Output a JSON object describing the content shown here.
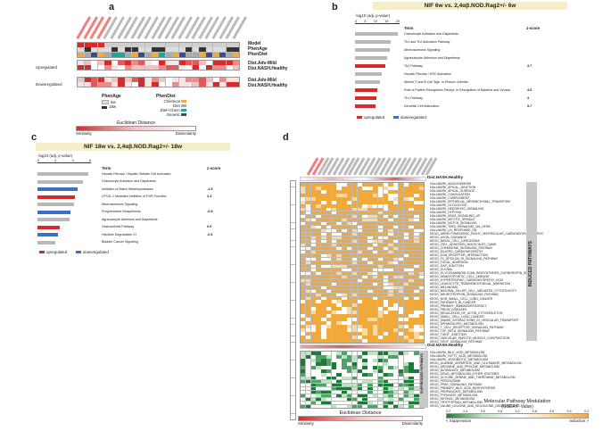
{
  "panels": {
    "a": "a",
    "b": "b",
    "c": "c",
    "d": "d"
  },
  "panel_a": {
    "row_labels": [
      "Model",
      "PhenAge",
      "PhenDiet",
      "Dist.Adv-Mild",
      "Dist.NASH.Healthy"
    ],
    "side_labels": [
      "Upregulated",
      "Downregulated"
    ],
    "phenage_title": "PhenAge",
    "phenage_items": [
      "6w",
      "18w"
    ],
    "phendiet_title": "PhenDiet",
    "phendiet_items": [
      "Chemical",
      "Diet",
      "Diet+Chem",
      "Genetic"
    ],
    "scale_title": "Euclidean Distance",
    "scale_low": "Similarity",
    "scale_high": "Dissimilarity"
  },
  "panel_b": {
    "title": "NIF 6w vs. 2,4αβ.NOD.Rag2+/- 6w",
    "axis_label": "-log10 (adj. p-value)",
    "ticks": [
      "0",
      "5",
      "10",
      "15",
      "20"
    ],
    "term_header": "Term",
    "z_header": "z-score",
    "terms": [
      {
        "term": "Granulocyte Adhesion and Diapedesis",
        "z": ""
      },
      {
        "term": "Th1 and Th2 Activation Pathway",
        "z": ""
      },
      {
        "term": "Atherosclerosis Signaling",
        "z": ""
      },
      {
        "term": "Agranulocyte Adhesion and Diapedesis",
        "z": ""
      },
      {
        "term": "Th2 Pathway",
        "z": "3.7"
      },
      {
        "term": "Hepatic Fibrosis / HSC Activation",
        "z": ""
      },
      {
        "term": "Altered T and B Cell Sign. in Rheum. Arthritis",
        "z": ""
      },
      {
        "term": "Role of Pattern Recognition Recept. in Recognition of Bacteria and Viruses",
        "z": "4.5"
      },
      {
        "term": "Th1 Pathway",
        "z": "4"
      },
      {
        "term": "Dendritic Cell Maturation",
        "z": "5.7"
      }
    ],
    "legend_up": "upregulated",
    "legend_down": "downregulated"
  },
  "panel_c": {
    "title": "NIF 18w vs. 2,4αβ.NOD.Rag2+/- 18w",
    "axis_label": "-log10 (adj. p-value)",
    "ticks": [
      "0",
      "2",
      "4",
      "6"
    ],
    "term_header": "Term",
    "z_header": "z-score",
    "terms": [
      {
        "term": "Hepatic Fibrosis / Hepatic Stellate Cell Activation",
        "z": ""
      },
      {
        "term": "Granulocyte Adhesion and Diapedesis",
        "z": ""
      },
      {
        "term": "Inhibition of Matrix Metalloproteases",
        "z": "-1.5"
      },
      {
        "term": "LPS/IL-1 Mediated Inhibition of RXR Function",
        "z": "2.3"
      },
      {
        "term": "Atherosclerosis Signaling",
        "z": ""
      },
      {
        "term": "Pregnenolone Biosynthesis",
        "z": "-0.8"
      },
      {
        "term": "Agranulocyte Adhesion and Diapedesis",
        "z": ""
      },
      {
        "term": "Osteoarthritis Pathway",
        "z": "0.5"
      },
      {
        "term": "Histidine Degradation VI",
        "z": "-0.6"
      },
      {
        "term": "Bladder Cancer Signaling",
        "z": ""
      }
    ],
    "legend_up": "upregulated",
    "legend_down": "downregulated"
  },
  "panel_d": {
    "top_label": "Dist.NASH.Healthy",
    "mid_label": "Dist.NASH.Healthy",
    "induced_label": "INDUCED PATHWAYS",
    "suppressed_label": "SUPPRESSED PATHWAYS",
    "induced_pathways": [
      "HALLMARK_ANGIOGENESIS",
      "HALLMARK_APICAL_JUNCTION",
      "HALLMARK_APICAL_SURFACE",
      "HALLMARK_COAGULATION",
      "HALLMARK_COMPLEMENT",
      "HALLMARK_EPITHELIAL_MESENCHYMAL_TRANSITION",
      "HALLMARK_GLYCOLYSIS",
      "HALLMARK_HEDGEHOG_SIGNALING",
      "HALLMARK_HYPOXIA",
      "HALLMARK_KRAS_SIGNALING_UP",
      "HALLMARK_MITOTIC_SPINDLE",
      "HALLMARK_NOTCH_SIGNALING",
      "HALLMARK_TNFA_SIGNALING_VIA_NFKB",
      "HALLMARK_UV_RESPONSE_DN",
      "KEGG_ARRHYTHMOGENIC_RIGHT_VENTRICULAR_CARDIOMYOPATHY_ARVC",
      "KEGG_AXON_GUIDANCE",
      "KEGG_BASAL_CELL_CARCINOMA",
      "KEGG_CELL_ADHESION_MOLECULES_CAMS",
      "KEGG_CHEMOKINE_SIGNALING_PATHWAY",
      "KEGG_DILATED_CARDIOMYOPATHY",
      "KEGG_ECM_RECEPTOR_INTERACTION",
      "KEGG_FC_EPSILON_RI_SIGNALING_PATHWAY",
      "KEGG_FOCAL_ADHESION",
      "KEGG_GAP_JUNCTION",
      "KEGG_GLIOMA",
      "KEGG_GLYCOSAMINOGLYCAN_BIOSYNTHESIS_CHONDROITIN_SULFATE",
      "KEGG_HEMATOPOIETIC_CELL_LINEAGE",
      "KEGG_HYPERTROPHIC_CARDIOMYOPATHY_HCM",
      "KEGG_LEUKOCYTE_TRANSENDOTHELIAL_MIGRATION",
      "KEGG_MELANOMA",
      "KEGG_NATURAL_KILLER_CELL_MEDIATED_CYTOTOXICITY",
      "KEGG_NEUROTROPHIN_SIGNALING_PATHWAY",
      "KEGG_NON_SMALL_CELL_LUNG_CANCER",
      "KEGG_PATHWAYS_IN_CANCER",
      "KEGG_PRIMARY_IMMUNODEFICIENCY",
      "KEGG_PRION_DISEASES",
      "KEGG_REGULATION_OF_ACTIN_CYTOSKELETON",
      "KEGG_SMALL_CELL_LUNG_CANCER",
      "KEGG_SNARE_INTERACTIONS_IN_VESICULAR_TRANSPORT",
      "KEGG_SPHINGOLIPID_METABOLISM",
      "KEGG_T_CELL_RECEPTOR_SIGNALING_PATHWAY",
      "KEGG_TGF_BETA_SIGNALING_PATHWAY",
      "KEGG_TIGHT_JUNCTION",
      "KEGG_VASCULAR_SMOOTH_MUSCLE_CONTRACTION",
      "KEGG_VEGF_SIGNALING_PATHWAY"
    ],
    "suppressed_pathways": [
      "HALLMARK_BILE_ACID_METABOLISM",
      "HALLMARK_FATTY_ACID_METABOLISM",
      "HALLMARK_XENOBIOTIC_METABOLISM",
      "KEGG_ALANINE_ASPARTATE_AND_GLUTAMATE_METABOLISM",
      "KEGG_ARGININE_AND_PROLINE_METABOLISM",
      "KEGG_BUTANOATE_METABOLISM",
      "KEGG_DRUG_METABOLISM_OTHER_ENZYMES",
      "KEGG_GLYCINE_SERINE_AND_THREONINE_METABOLISM",
      "KEGG_PEROXISOME",
      "KEGG_PPAR_SIGNALING_PATHWAY",
      "KEGG_PRIMARY_BILE_ACID_BIOSYNTHESIS",
      "KEGG_PROPANOATE_METABOLISM",
      "KEGG_PYRUVATE_METABOLISM",
      "KEGG_RETINOL_METABOLISM",
      "KEGG_TRYPTOPHAN_METABOLISM",
      "KEGG_VALINE_LEUCINE_AND_ISOLEUCINE_DEGRADATION"
    ],
    "scale_title": "Euclidean Distance",
    "scale_low": "Similarity",
    "scale_high": "Dissimilarity",
    "mod_title": "Molecular Pathway Modulation",
    "mod_subtitle": "(GSEA P-Value)",
    "mod_ticks": [
      "0.2",
      "0.4",
      "0.6",
      "0.8",
      "1.0",
      "0.8",
      "0.6",
      "0.4",
      "0.2"
    ],
    "mod_low": "< Suppression",
    "mod_high": "Induction >"
  },
  "colors": {
    "upregulated": "#d62b2b",
    "downregulated": "#3e6fc4",
    "gray": "#b8b8b8",
    "orange": "#f2a93b",
    "green": "#1f7a3a"
  }
}
